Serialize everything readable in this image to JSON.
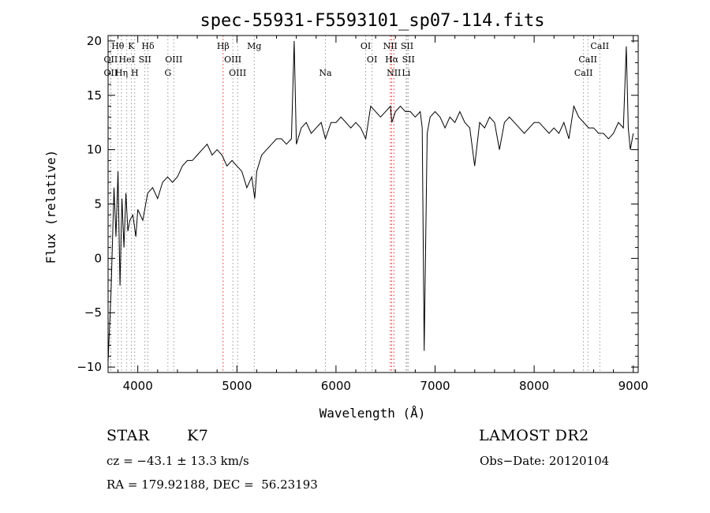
{
  "chart_data": {
    "type": "line",
    "title": "spec-55931-F5593101_sp07-114.fits",
    "xlabel": "Wavelength (Å)",
    "ylabel": "Flux (relative)",
    "xlim": [
      3700,
      9050
    ],
    "ylim": [
      -10.5,
      20.5
    ],
    "x_ticks": [
      4000,
      5000,
      6000,
      7000,
      8000,
      9000
    ],
    "y_ticks": [
      -10,
      -5,
      0,
      5,
      10,
      15,
      20
    ],
    "grid": false,
    "series": [
      {
        "x": [
          3700,
          3730,
          3760,
          3780,
          3800,
          3820,
          3840,
          3860,
          3880,
          3900,
          3920,
          3950,
          3980,
          4000,
          4050,
          4100,
          4150,
          4200,
          4250,
          4300,
          4350,
          4400,
          4450,
          4500,
          4550,
          4600,
          4650,
          4700,
          4750,
          4800,
          4850,
          4900,
          4950,
          5000,
          5050,
          5100,
          5150,
          5180,
          5200,
          5250,
          5300,
          5350,
          5400,
          5450,
          5500,
          5550,
          5578,
          5600,
          5650,
          5700,
          5750,
          5800,
          5850,
          5893,
          5950,
          6000,
          6050,
          6100,
          6150,
          6200,
          6250,
          6300,
          6350,
          6400,
          6450,
          6500,
          6550,
          6563,
          6600,
          6650,
          6700,
          6750,
          6800,
          6850,
          6870,
          6890,
          6920,
          6950,
          7000,
          7050,
          7100,
          7150,
          7200,
          7250,
          7300,
          7350,
          7400,
          7450,
          7500,
          7550,
          7600,
          7650,
          7700,
          7750,
          7800,
          7850,
          7900,
          7950,
          8000,
          8050,
          8100,
          8150,
          8200,
          8250,
          8300,
          8350,
          8400,
          8450,
          8500,
          8550,
          8600,
          8650,
          8700,
          8750,
          8800,
          8850,
          8900,
          8930,
          8950,
          8970,
          9000
        ],
        "y": [
          -9.5,
          -3.0,
          6.5,
          2.0,
          8.0,
          -2.5,
          5.5,
          1.0,
          6.0,
          2.5,
          3.5,
          4.0,
          2.0,
          4.5,
          3.5,
          6.0,
          6.5,
          5.5,
          7.0,
          7.5,
          7.0,
          7.5,
          8.5,
          9.0,
          9.0,
          9.5,
          10.0,
          10.5,
          9.5,
          10.0,
          9.5,
          8.5,
          9.0,
          8.5,
          8.0,
          6.5,
          7.5,
          5.5,
          8.0,
          9.5,
          10.0,
          10.5,
          11.0,
          11.0,
          10.5,
          11.0,
          20.0,
          10.5,
          12.0,
          12.5,
          11.5,
          12.0,
          12.5,
          11.0,
          12.5,
          12.5,
          13.0,
          12.5,
          12.0,
          12.5,
          12.0,
          11.0,
          14.0,
          13.5,
          13.0,
          13.5,
          14.0,
          12.5,
          13.5,
          14.0,
          13.5,
          13.5,
          13.0,
          13.5,
          12.0,
          -8.5,
          11.5,
          13.0,
          13.5,
          13.0,
          12.0,
          13.0,
          12.5,
          13.5,
          12.5,
          12.0,
          8.5,
          12.5,
          12.0,
          13.0,
          12.5,
          10.0,
          12.5,
          13.0,
          12.5,
          12.0,
          11.5,
          12.0,
          12.5,
          12.5,
          12.0,
          11.5,
          12.0,
          11.5,
          12.5,
          11.0,
          14.0,
          13.0,
          12.5,
          12.0,
          12.0,
          11.5,
          11.5,
          11.0,
          11.5,
          12.5,
          12.0,
          19.5,
          12.0,
          10.0,
          11.5
        ]
      }
    ],
    "line_markers": [
      {
        "label": "Hθ",
        "x": 3798,
        "row": 0
      },
      {
        "label": "K",
        "x": 3934,
        "row": 0
      },
      {
        "label": "Hδ",
        "x": 4102,
        "row": 0
      },
      {
        "label": "OII",
        "x": 3727,
        "row": 1
      },
      {
        "label": "HeI",
        "x": 3889,
        "row": 1
      },
      {
        "label": "SII",
        "x": 4072,
        "row": 1
      },
      {
        "label": "OIII",
        "x": 4363,
        "row": 1
      },
      {
        "label": "OII",
        "x": 3727,
        "row": 2
      },
      {
        "label": "Hη",
        "x": 3835,
        "row": 2
      },
      {
        "label": "H",
        "x": 3969,
        "row": 2
      },
      {
        "label": "G",
        "x": 4304,
        "row": 2
      },
      {
        "label": "Hβ",
        "x": 4861,
        "row": 0
      },
      {
        "label": "Mg",
        "x": 5175,
        "row": 0
      },
      {
        "label": "OIII",
        "x": 4959,
        "row": 1
      },
      {
        "label": "OIII",
        "x": 5007,
        "row": 2
      },
      {
        "label": "Na",
        "x": 5893,
        "row": 2
      },
      {
        "label": "OI",
        "x": 6300,
        "row": 0
      },
      {
        "label": "OI",
        "x": 6364,
        "row": 1
      },
      {
        "label": "NII",
        "x": 6548,
        "row": 0
      },
      {
        "label": "SII",
        "x": 6717,
        "row": 0
      },
      {
        "label": "Hα",
        "x": 6563,
        "row": 1
      },
      {
        "label": "SII",
        "x": 6731,
        "row": 1
      },
      {
        "label": "NII",
        "x": 6584,
        "row": 2
      },
      {
        "label": "Li",
        "x": 6708,
        "row": 2
      },
      {
        "label": "CaII",
        "x": 8662,
        "row": 0
      },
      {
        "label": "CaII",
        "x": 8542,
        "row": 1
      },
      {
        "label": "CaII",
        "x": 8498,
        "row": 2
      }
    ],
    "line_color": "#000000",
    "marker_color": "#808080",
    "balmer_marker_color": "#cc0000"
  },
  "info": {
    "object_class": "STAR",
    "subclass": "K7",
    "survey": "LAMOST DR2",
    "cz": "cz = −43.1 ± 13.3 km/s",
    "obs_date": "Obs−Date: 20120104",
    "coords": "RA = 179.92188, DEC =  56.23193"
  }
}
